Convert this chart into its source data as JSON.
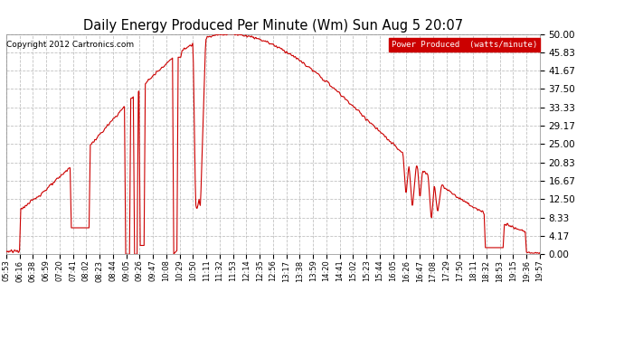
{
  "title": "Daily Energy Produced Per Minute (Wm) Sun Aug 5 20:07",
  "copyright": "Copyright 2012 Cartronics.com",
  "legend_label": "Power Produced  (watts/minute)",
  "legend_bg": "#cc0000",
  "legend_fg": "#ffffff",
  "line_color": "#cc0000",
  "bg_color": "#ffffff",
  "grid_color": "#bbbbbb",
  "ylim": [
    0,
    50
  ],
  "yticks": [
    0.0,
    4.17,
    8.33,
    12.5,
    16.67,
    20.83,
    25.0,
    29.17,
    33.33,
    37.5,
    41.67,
    45.83,
    50.0
  ],
  "xtick_labels": [
    "05:53",
    "06:16",
    "06:38",
    "06:59",
    "07:20",
    "07:41",
    "08:02",
    "08:23",
    "08:44",
    "09:05",
    "09:26",
    "09:47",
    "10:08",
    "10:29",
    "10:50",
    "11:11",
    "11:32",
    "11:53",
    "12:14",
    "12:35",
    "12:56",
    "13:17",
    "13:38",
    "13:59",
    "14:20",
    "14:41",
    "15:02",
    "15:23",
    "15:44",
    "16:05",
    "16:26",
    "16:47",
    "17:08",
    "17:29",
    "17:50",
    "18:11",
    "18:32",
    "18:53",
    "19:15",
    "19:36",
    "19:57"
  ],
  "start_time": "05:53",
  "end_time": "19:57",
  "peak_time": "11:45",
  "peak_value": 50.0
}
